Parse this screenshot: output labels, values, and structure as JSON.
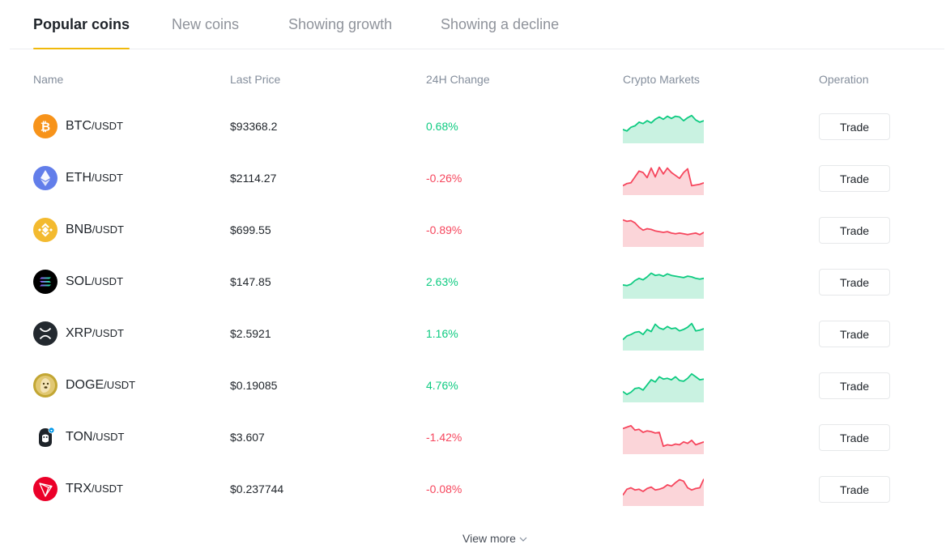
{
  "tabs": [
    {
      "label": "Popular coins",
      "active": true
    },
    {
      "label": "New coins",
      "active": false
    },
    {
      "label": "Showing growth",
      "active": false
    },
    {
      "label": "Showing a decline",
      "active": false
    }
  ],
  "columns": {
    "name": "Name",
    "last_price": "Last Price",
    "change": "24H Change",
    "markets": "Crypto Markets",
    "operation": "Operation"
  },
  "colors": {
    "accent": "#f0b90b",
    "up": "#0ecb81",
    "down": "#f6465d",
    "up_fill": "#c9f2e1",
    "down_fill": "#fbd5d9"
  },
  "coins": [
    {
      "base": "BTC",
      "quote": "/USDT",
      "icon": "bitcoin-icon",
      "price": "$93368.2",
      "change": "0.68%",
      "trend": "up",
      "spark": [
        22,
        24,
        19,
        17,
        12,
        14,
        10,
        13,
        8,
        5,
        8,
        4,
        7,
        4,
        5,
        10,
        6,
        3,
        9,
        12,
        10
      ]
    },
    {
      "base": "ETH",
      "quote": "/USDT",
      "icon": "ethereum-icon",
      "price": "$2114.27",
      "change": "-0.26%",
      "trend": "down",
      "spark": [
        28,
        25,
        24,
        16,
        8,
        10,
        17,
        4,
        16,
        3,
        12,
        4,
        10,
        14,
        18,
        10,
        5,
        28,
        27,
        26,
        24
      ]
    },
    {
      "base": "BNB",
      "quote": "/USDT",
      "icon": "bnb-icon",
      "price": "$699.55",
      "change": "-0.89%",
      "trend": "down",
      "spark": [
        4,
        6,
        5,
        8,
        14,
        18,
        16,
        17,
        19,
        20,
        21,
        20,
        22,
        23,
        22,
        23,
        24,
        23,
        22,
        24,
        21
      ]
    },
    {
      "base": "SOL",
      "quote": "/USDT",
      "icon": "solana-icon",
      "price": "$147.85",
      "change": "2.63%",
      "trend": "up",
      "spark": [
        22,
        23,
        21,
        16,
        13,
        15,
        11,
        6,
        9,
        8,
        10,
        7,
        9,
        10,
        11,
        12,
        10,
        11,
        13,
        14,
        13
      ]
    },
    {
      "base": "XRP",
      "quote": "/USDT",
      "icon": "xrp-icon",
      "price": "$2.5921",
      "change": "1.16%",
      "trend": "up",
      "spark": [
        26,
        21,
        19,
        16,
        15,
        19,
        12,
        15,
        5,
        10,
        12,
        8,
        11,
        10,
        14,
        12,
        9,
        4,
        14,
        13,
        11
      ]
    },
    {
      "base": "DOGE",
      "quote": "/USDT",
      "icon": "doge-icon",
      "price": "$0.19085",
      "change": "4.76%",
      "trend": "up",
      "spark": [
        26,
        30,
        27,
        22,
        21,
        24,
        17,
        10,
        13,
        6,
        9,
        8,
        10,
        6,
        11,
        12,
        8,
        2,
        6,
        10,
        9
      ]
    },
    {
      "base": "TON",
      "quote": "/USDT",
      "icon": "ton-icon",
      "price": "$3.607",
      "change": "-1.42%",
      "trend": "down",
      "spark": [
        6,
        4,
        2,
        8,
        7,
        11,
        9,
        10,
        12,
        11,
        30,
        28,
        29,
        27,
        28,
        24,
        26,
        22,
        28,
        26,
        24
      ]
    },
    {
      "base": "TRX",
      "quote": "/USDT",
      "icon": "tron-icon",
      "price": "$0.237744",
      "change": "-0.08%",
      "trend": "down",
      "spark": [
        26,
        18,
        16,
        19,
        18,
        21,
        17,
        15,
        19,
        18,
        16,
        12,
        14,
        9,
        5,
        7,
        16,
        19,
        17,
        16,
        4
      ]
    }
  ],
  "trade_label": "Trade",
  "view_more": "View more"
}
